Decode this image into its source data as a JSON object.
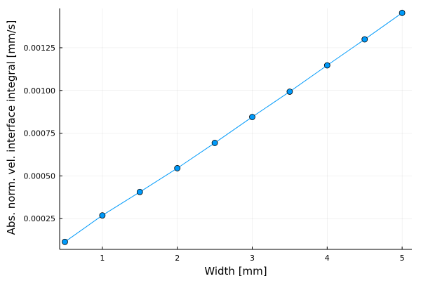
{
  "chart_data": {
    "type": "line",
    "title": "",
    "xlabel": "Width [mm]",
    "ylabel": "Abs. norm. vel. interface integral [mm/s]",
    "xlim": [
      0.43,
      5.13
    ],
    "ylim": [
      7e-05,
      0.00148
    ],
    "grid": true,
    "legend": "none",
    "x_ticks": [
      1,
      2,
      3,
      4,
      5
    ],
    "x_tick_labels": [
      "1",
      "2",
      "3",
      "4",
      "5"
    ],
    "y_ticks": [
      0.00025,
      0.0005,
      0.00075,
      0.001,
      0.00125
    ],
    "y_tick_labels": [
      "0.00025",
      "0.00050",
      "0.00075",
      "0.00100",
      "0.00125"
    ],
    "series": [
      {
        "x": [
          0.5,
          1.0,
          1.5,
          2.0,
          2.5,
          3.0,
          3.5,
          4.0,
          4.5,
          5.0
        ],
        "y": [
          0.000114,
          0.000269,
          0.000406,
          0.000545,
          0.000693,
          0.000845,
          0.000993,
          0.001147,
          0.001299,
          0.001454
        ],
        "color": "#009AFA",
        "marker": "circle"
      }
    ]
  }
}
